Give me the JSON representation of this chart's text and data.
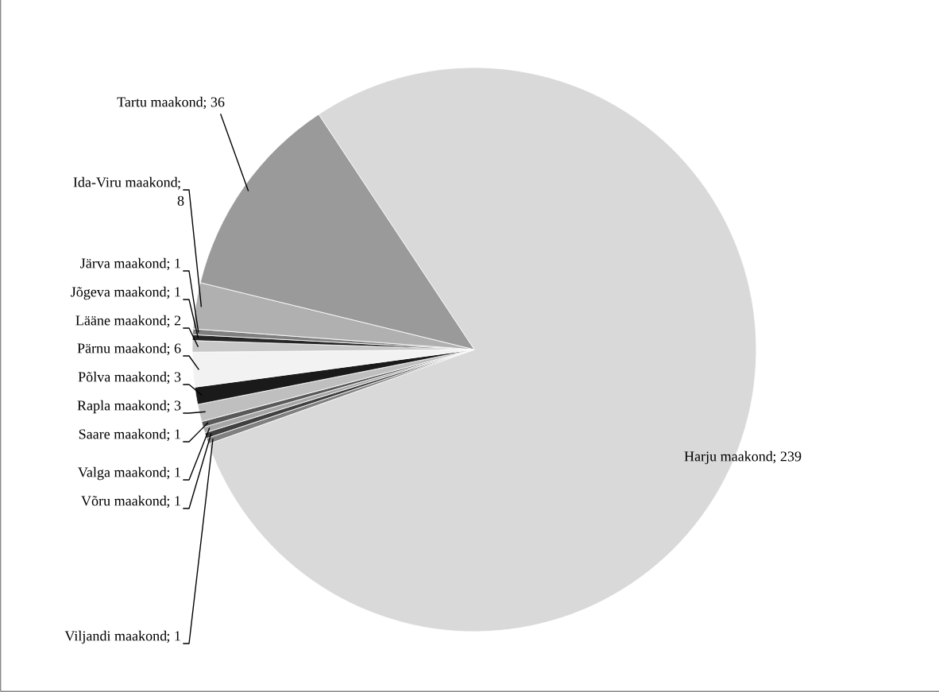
{
  "chart_data": {
    "type": "pie",
    "categories": [
      "Harju maakond",
      "Viljandi maakond",
      "Võru maakond",
      "Valga maakond",
      "Saare maakond",
      "Rapla maakond",
      "Põlva maakond",
      "Pärnu maakond",
      "Lääne maakond",
      "Jõgeva maakond",
      "Järva maakond",
      "Ida-Viru maakond",
      "Tartu maakond"
    ],
    "values": [
      239,
      1,
      1,
      1,
      1,
      3,
      3,
      6,
      2,
      1,
      1,
      8,
      36
    ],
    "colors": [
      "#d9d9d9",
      "#808080",
      "#404040",
      "#a6a6a6",
      "#595959",
      "#bfbfbf",
      "#1a1a1a",
      "#f2f2f2",
      "#c8c8c8",
      "#262626",
      "#7f7f7f",
      "#b0b0b0",
      "#9a9a9a"
    ],
    "value_labels": [
      "; 239",
      "; 1",
      "; 1",
      "; 1",
      "; 1",
      "; 3",
      "; 3",
      "; 6",
      "; 2",
      "; 1",
      "; 1",
      "; 8",
      "; 36"
    ]
  }
}
